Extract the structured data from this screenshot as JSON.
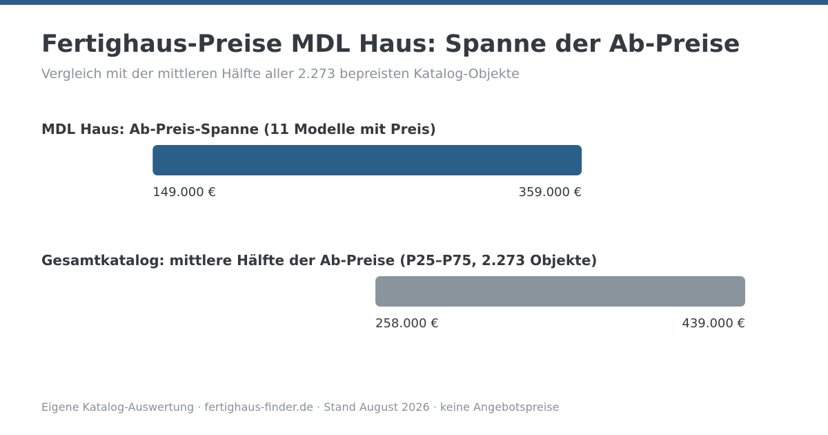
{
  "page": {
    "title": "Fertighaus-Preise MDL Haus: Spanne der Ab-Preise",
    "subtitle": "Vergleich mit der mittleren Hälfte aller 2.273 bepreisten Katalog-Objekte",
    "footer": "Eigene Katalog-Auswertung · fertighaus-finder.de · Stand August 2026 · keine Angebotspreise"
  },
  "colors": {
    "accent": "#2b5f8a",
    "catalog_bar": "#8a949c",
    "text_dark": "#343a3f",
    "text_muted": "#8a9299"
  },
  "chart_data": {
    "type": "bar",
    "orientation": "horizontal-range",
    "xlim": [
      105000,
      439000
    ],
    "currency": "€",
    "bars": [
      {
        "label": "MDL Haus: Ab-Preis-Spanne (11 Modelle mit Preis)",
        "start": 149000,
        "end": 359000,
        "start_label": "149.000 €",
        "end_label": "359.000 €",
        "color": "#2b5f8a"
      },
      {
        "label": "Gesamtkatalog: mittlere Hälfte der Ab-Preise (P25–P75, 2.273 Objekte)",
        "start": 258000,
        "end": 439000,
        "start_label": "258.000 €",
        "end_label": "439.000 €",
        "color": "#8a949c"
      }
    ]
  }
}
